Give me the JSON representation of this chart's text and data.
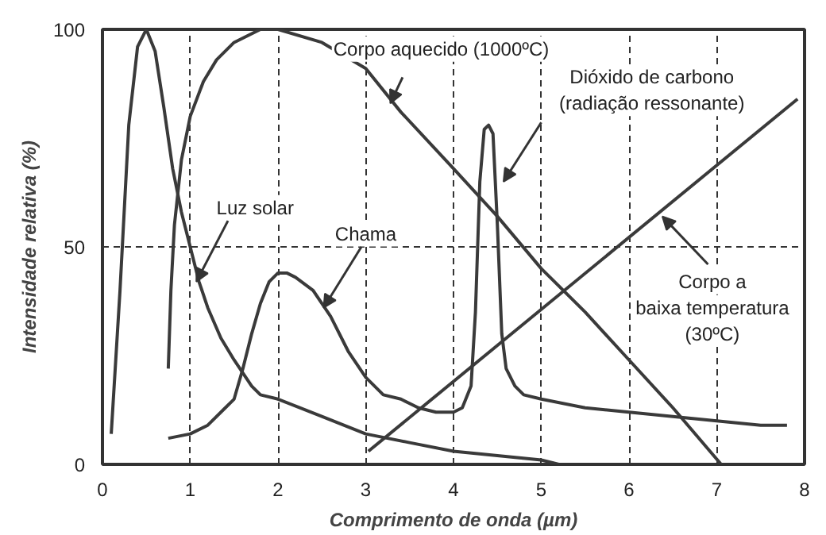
{
  "chart_data": {
    "type": "line",
    "xlabel": "Comprimento de onda (µm)",
    "ylabel": "Intensidade relativa (%)",
    "xlim": [
      0,
      8
    ],
    "ylim": [
      0,
      100
    ],
    "xticks": [
      0,
      1,
      2,
      3,
      4,
      5,
      6,
      7,
      8
    ],
    "yticks": [
      0,
      50,
      100
    ],
    "grid": true,
    "line_style": "solid",
    "marker": "none",
    "series": [
      {
        "color": "#3a3a3a",
        "x": [
          0.1,
          0.2,
          0.3,
          0.4,
          0.5,
          0.6,
          0.7,
          0.8,
          0.9,
          1.0,
          1.1,
          1.2,
          1.35,
          1.5,
          1.7,
          1.8,
          2.0,
          2.5,
          3.0,
          3.5,
          4.0,
          4.5,
          5.0,
          5.2
        ],
        "values": [
          7,
          40,
          78,
          96,
          100,
          95,
          82,
          68,
          58,
          50,
          42,
          36,
          29,
          24,
          18,
          16,
          15,
          11,
          7,
          5,
          3,
          2,
          1,
          0
        ]
      },
      {
        "color": "#3a3a3a",
        "x": [
          0.75,
          0.78,
          0.82,
          0.9,
          1.0,
          1.15,
          1.3,
          1.5,
          1.8,
          2.0,
          2.5,
          3.0,
          3.4,
          4.0,
          4.5,
          5.0,
          5.5,
          6.0,
          6.5,
          7.05
        ],
        "values": [
          22,
          40,
          55,
          70,
          80,
          88,
          93,
          97,
          100,
          100,
          97,
          91,
          81,
          68,
          57,
          45,
          35,
          24,
          13,
          0
        ]
      },
      {
        "color": "#3a3a3a",
        "x": [
          0.75,
          1.0,
          1.2,
          1.4,
          1.5,
          1.6,
          1.7,
          1.8,
          1.9,
          2.0,
          2.1,
          2.2,
          2.4,
          2.6,
          2.8,
          3.0,
          3.2,
          3.4,
          3.6,
          3.8,
          4.0,
          4.1,
          4.2,
          4.25,
          4.3,
          4.35,
          4.4,
          4.45,
          4.5,
          4.55,
          4.6,
          4.7,
          4.8,
          5.0,
          5.5,
          6.0,
          6.5,
          7.0,
          7.5,
          7.8
        ],
        "values": [
          6,
          7,
          9,
          13,
          15,
          22,
          30,
          37,
          42,
          44,
          44,
          43,
          40,
          34,
          26,
          20,
          16,
          15,
          13,
          12,
          12,
          13,
          18,
          35,
          65,
          77,
          78,
          76,
          55,
          30,
          22,
          18,
          16,
          15,
          13,
          12,
          11,
          10,
          9,
          9
        ]
      },
      {
        "color": "#3a3a3a",
        "x": [
          3.03,
          7.92
        ],
        "values": [
          3,
          84
        ]
      }
    ],
    "annotations": [
      {
        "text": "Corpo aquecido (1000ºC)",
        "x": 3.28,
        "y": 83
      },
      {
        "text": "Dióxido de carbono\n(radiação ressonante)",
        "x": 4.57,
        "y": 65
      },
      {
        "text": "Luz solar",
        "x": 1.07,
        "y": 42
      },
      {
        "text": "Chama",
        "x": 2.52,
        "y": 36
      },
      {
        "text": "Corpo a\nbaixa temperatura\n(30ºC)",
        "x": 6.38,
        "y": 57
      }
    ]
  }
}
